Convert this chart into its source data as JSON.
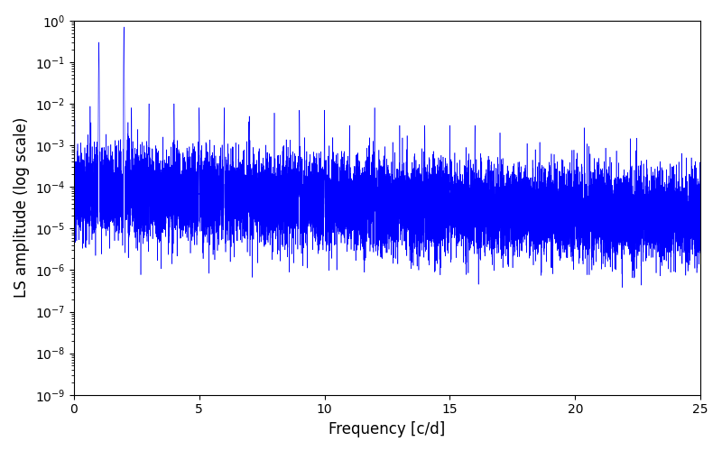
{
  "title": "",
  "xlabel": "Frequency [c/d]",
  "ylabel": "LS amplitude (log scale)",
  "xlim": [
    0,
    25
  ],
  "ylim": [
    3e-10,
    3.0
  ],
  "ylim_display": [
    1e-09,
    1.0
  ],
  "line_color": "#0000ff",
  "line_width": 0.4,
  "yscale": "log",
  "seed": 12345,
  "n_points": 15000,
  "freq_max": 25.0,
  "background_color": "#ffffff"
}
